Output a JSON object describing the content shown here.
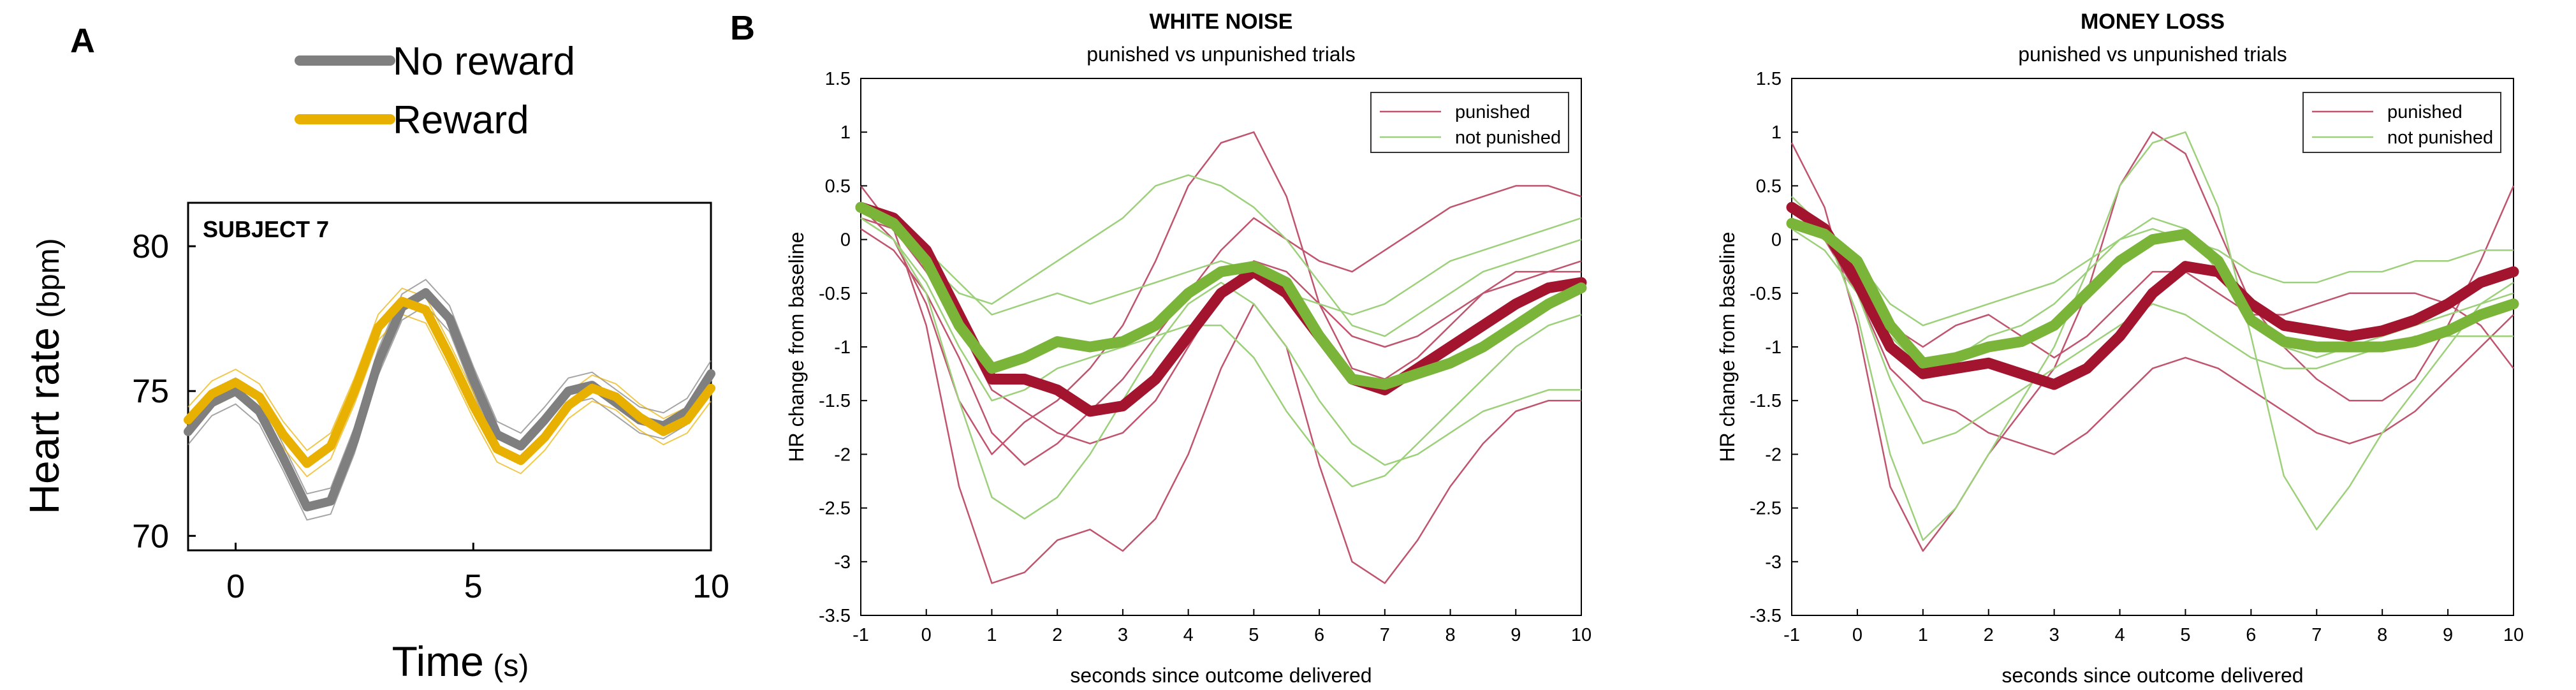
{
  "panel_labels": {
    "a": "A",
    "b": "B"
  },
  "colors": {
    "no_reward": "#7f7f7f",
    "reward": "#e8b000",
    "punished_thin": "#c0546e",
    "not_punished_thin": "#9dd07a",
    "punished_mean": "#a3142e",
    "not_punished_mean": "#7ab53a"
  },
  "chart_data": [
    {
      "id": "panel-a",
      "type": "line",
      "annotation": "SUBJECT 7",
      "xlabel": "Time",
      "xlabel_unit": "(s)",
      "ylabel": "Heart rate",
      "ylabel_unit": "(bpm)",
      "xlim": [
        -1,
        10
      ],
      "ylim": [
        69.5,
        81.5
      ],
      "xticks": [
        0,
        5,
        10
      ],
      "yticks": [
        70,
        75,
        80
      ],
      "grid": false,
      "legend_position": "top",
      "series": [
        {
          "name": "No reward",
          "color_key": "no_reward",
          "x": [
            -1,
            -0.5,
            0,
            0.5,
            1,
            1.5,
            2,
            2.5,
            3,
            3.5,
            4,
            4.5,
            5,
            5.5,
            6,
            6.5,
            7,
            7.5,
            8,
            8.5,
            9,
            9.5,
            10
          ],
          "y": [
            73.6,
            74.6,
            75.0,
            74.3,
            72.7,
            71.0,
            71.2,
            73.3,
            76.0,
            77.9,
            78.4,
            77.5,
            75.4,
            73.5,
            73.1,
            74.0,
            75.0,
            75.2,
            74.6,
            74.0,
            73.8,
            74.3,
            75.6
          ]
        },
        {
          "name": "Reward",
          "color_key": "reward",
          "x": [
            -1,
            -0.5,
            0,
            0.5,
            1,
            1.5,
            2,
            2.5,
            3,
            3.5,
            4,
            4.5,
            5,
            5.5,
            6,
            6.5,
            7,
            7.5,
            8,
            8.5,
            9,
            9.5,
            10
          ],
          "y": [
            74.0,
            74.9,
            75.3,
            74.8,
            73.5,
            72.5,
            73.1,
            75.0,
            77.2,
            78.1,
            77.8,
            76.2,
            74.5,
            73.0,
            72.6,
            73.4,
            74.5,
            75.1,
            74.8,
            74.1,
            73.6,
            74.0,
            75.1
          ]
        }
      ]
    },
    {
      "id": "panel-b1",
      "type": "line",
      "title": "WHITE NOISE",
      "subtitle": "punished vs unpunished trials",
      "xlabel": "seconds since outcome delivered",
      "ylabel": "HR change from baseline",
      "xlim": [
        -1,
        10
      ],
      "ylim": [
        -3.5,
        1.5
      ],
      "xticks": [
        -1,
        0,
        1,
        2,
        3,
        4,
        5,
        6,
        7,
        8,
        9,
        10
      ],
      "yticks": [
        "1.5",
        "1",
        "0.5",
        "0",
        "-0.5",
        "-1",
        "-1.5",
        "-2",
        "-2.5",
        "-3",
        "-3.5"
      ],
      "grid": false,
      "legend_position": "top-right",
      "x": [
        -1,
        -0.5,
        0,
        0.5,
        1,
        1.5,
        2,
        2.5,
        3,
        3.5,
        4,
        4.5,
        5,
        5.5,
        6,
        6.5,
        7,
        7.5,
        8,
        8.5,
        9,
        9.5,
        10
      ],
      "series": [
        {
          "name": "punished",
          "role": "mean",
          "y": [
            0.3,
            0.2,
            -0.1,
            -0.7,
            -1.3,
            -1.3,
            -1.4,
            -1.6,
            -1.55,
            -1.3,
            -0.9,
            -0.5,
            -0.3,
            -0.5,
            -0.9,
            -1.3,
            -1.4,
            -1.2,
            -1.0,
            -0.8,
            -0.6,
            -0.45,
            -0.4
          ]
        },
        {
          "name": "not punished",
          "role": "mean",
          "y": [
            0.3,
            0.15,
            -0.2,
            -0.8,
            -1.2,
            -1.1,
            -0.95,
            -1.0,
            -0.95,
            -0.8,
            -0.5,
            -0.3,
            -0.25,
            -0.4,
            -0.9,
            -1.3,
            -1.35,
            -1.25,
            -1.15,
            -1.0,
            -0.8,
            -0.6,
            -0.45
          ]
        },
        {
          "name": "punished",
          "role": "trial",
          "y": [
            0.5,
            0.1,
            -0.8,
            -2.3,
            -3.2,
            -3.1,
            -2.8,
            -2.7,
            -2.9,
            -2.6,
            -2.0,
            -1.2,
            -0.6,
            -1.0,
            -2.1,
            -3.0,
            -3.2,
            -2.8,
            -2.3,
            -1.9,
            -1.6,
            -1.5,
            -1.5
          ]
        },
        {
          "name": "punished",
          "role": "trial",
          "y": [
            0.3,
            0.0,
            -0.6,
            -1.5,
            -2.0,
            -1.7,
            -1.5,
            -1.2,
            -0.8,
            -0.2,
            0.5,
            0.9,
            1.0,
            0.4,
            -0.6,
            -1.2,
            -1.3,
            -1.1,
            -0.8,
            -0.5,
            -0.3,
            -0.3,
            -0.2
          ]
        },
        {
          "name": "punished",
          "role": "trial",
          "y": [
            0.2,
            0.1,
            -0.3,
            -0.8,
            -1.4,
            -1.6,
            -1.8,
            -1.9,
            -1.8,
            -1.5,
            -1.0,
            -0.5,
            -0.2,
            -0.3,
            -0.6,
            -0.9,
            -1.0,
            -0.9,
            -0.7,
            -0.5,
            -0.4,
            -0.3,
            -0.3
          ]
        },
        {
          "name": "punished",
          "role": "trial",
          "y": [
            0.1,
            -0.1,
            -0.5,
            -1.1,
            -1.8,
            -2.1,
            -1.9,
            -1.6,
            -1.3,
            -0.9,
            -0.5,
            -0.1,
            0.2,
            0.0,
            -0.2,
            -0.3,
            -0.1,
            0.1,
            0.3,
            0.4,
            0.5,
            0.5,
            0.4
          ]
        },
        {
          "name": "not punished",
          "role": "trial",
          "y": [
            0.2,
            0.0,
            -0.5,
            -1.5,
            -2.4,
            -2.6,
            -2.4,
            -2.0,
            -1.5,
            -1.0,
            -0.6,
            -0.4,
            -0.6,
            -1.0,
            -1.5,
            -1.9,
            -2.1,
            -2.0,
            -1.8,
            -1.6,
            -1.5,
            -1.4,
            -1.4
          ]
        },
        {
          "name": "not punished",
          "role": "trial",
          "y": [
            0.3,
            0.1,
            -0.2,
            -0.5,
            -0.6,
            -0.4,
            -0.2,
            0.0,
            0.2,
            0.5,
            0.6,
            0.5,
            0.3,
            0.0,
            -0.4,
            -0.8,
            -0.9,
            -0.7,
            -0.5,
            -0.3,
            -0.2,
            -0.1,
            0.0
          ]
        },
        {
          "name": "not punished",
          "role": "trial",
          "y": [
            0.2,
            0.0,
            -0.4,
            -1.0,
            -1.5,
            -1.4,
            -1.2,
            -1.1,
            -1.0,
            -0.9,
            -0.8,
            -0.8,
            -1.1,
            -1.6,
            -2.0,
            -2.3,
            -2.2,
            -1.9,
            -1.6,
            -1.3,
            -1.0,
            -0.8,
            -0.7
          ]
        },
        {
          "name": "not punished",
          "role": "trial",
          "y": [
            0.3,
            0.2,
            -0.1,
            -0.4,
            -0.7,
            -0.6,
            -0.5,
            -0.6,
            -0.5,
            -0.4,
            -0.3,
            -0.2,
            -0.3,
            -0.5,
            -0.6,
            -0.7,
            -0.6,
            -0.4,
            -0.2,
            -0.1,
            0.0,
            0.1,
            0.2
          ]
        }
      ]
    },
    {
      "id": "panel-b2",
      "type": "line",
      "title": "MONEY LOSS",
      "subtitle": "punished vs unpunished trials",
      "xlabel": "seconds since outcome delivered",
      "ylabel": "HR change from baseline",
      "xlim": [
        -1,
        10
      ],
      "ylim": [
        -3.5,
        1.5
      ],
      "xticks": [
        -1,
        0,
        1,
        2,
        3,
        4,
        5,
        6,
        7,
        8,
        9,
        10
      ],
      "yticks": [
        "1.5",
        "1",
        "0.5",
        "0",
        "-0.5",
        "-1",
        "-1.5",
        "-2",
        "-2.5",
        "-3",
        "-3.5"
      ],
      "grid": false,
      "legend_position": "top-right",
      "x": [
        -1,
        -0.5,
        0,
        0.5,
        1,
        1.5,
        2,
        2.5,
        3,
        3.5,
        4,
        4.5,
        5,
        5.5,
        6,
        6.5,
        7,
        7.5,
        8,
        8.5,
        9,
        9.5,
        10
      ],
      "series": [
        {
          "name": "punished",
          "role": "mean",
          "y": [
            0.3,
            0.1,
            -0.4,
            -1.0,
            -1.25,
            -1.2,
            -1.15,
            -1.25,
            -1.35,
            -1.2,
            -0.9,
            -0.5,
            -0.25,
            -0.3,
            -0.6,
            -0.8,
            -0.85,
            -0.9,
            -0.85,
            -0.75,
            -0.6,
            -0.4,
            -0.3
          ]
        },
        {
          "name": "not punished",
          "role": "mean",
          "y": [
            0.15,
            0.05,
            -0.2,
            -0.8,
            -1.15,
            -1.1,
            -1.0,
            -0.95,
            -0.8,
            -0.5,
            -0.2,
            0.0,
            0.05,
            -0.2,
            -0.75,
            -0.95,
            -1.0,
            -1.0,
            -1.0,
            -0.95,
            -0.85,
            -0.7,
            -0.6
          ]
        },
        {
          "name": "punished",
          "role": "trial",
          "y": [
            0.9,
            0.3,
            -0.8,
            -2.3,
            -2.9,
            -2.5,
            -2.0,
            -1.6,
            -1.2,
            -0.5,
            0.5,
            1.0,
            0.8,
            0.1,
            -0.6,
            -1.0,
            -1.3,
            -1.5,
            -1.5,
            -1.3,
            -0.8,
            -0.2,
            0.5
          ]
        },
        {
          "name": "punished",
          "role": "trial",
          "y": [
            0.2,
            0.0,
            -0.5,
            -1.2,
            -1.5,
            -1.6,
            -1.8,
            -1.9,
            -2.0,
            -1.8,
            -1.5,
            -1.2,
            -1.1,
            -1.2,
            -1.4,
            -1.6,
            -1.8,
            -1.9,
            -1.8,
            -1.6,
            -1.3,
            -1.0,
            -0.7
          ]
        },
        {
          "name": "punished",
          "role": "trial",
          "y": [
            0.3,
            0.1,
            -0.3,
            -0.8,
            -1.0,
            -0.8,
            -0.7,
            -0.9,
            -1.1,
            -0.9,
            -0.6,
            -0.3,
            -0.3,
            -0.5,
            -0.7,
            -0.7,
            -0.6,
            -0.5,
            -0.5,
            -0.5,
            -0.6,
            -0.8,
            -1.2
          ]
        },
        {
          "name": "not punished",
          "role": "trial",
          "y": [
            0.4,
            0.1,
            -0.7,
            -2.0,
            -2.8,
            -2.5,
            -2.0,
            -1.5,
            -1.0,
            -0.3,
            0.5,
            0.9,
            1.0,
            0.3,
            -0.9,
            -2.2,
            -2.7,
            -2.3,
            -1.8,
            -1.4,
            -1.0,
            -0.6,
            -0.4
          ]
        },
        {
          "name": "not punished",
          "role": "trial",
          "y": [
            0.2,
            0.0,
            -0.4,
            -0.9,
            -1.2,
            -1.1,
            -0.9,
            -0.8,
            -0.6,
            -0.3,
            0.0,
            0.2,
            0.1,
            -0.3,
            -0.8,
            -1.0,
            -1.1,
            -1.0,
            -0.9,
            -0.8,
            -0.7,
            -0.6,
            -0.5
          ]
        },
        {
          "name": "not punished",
          "role": "trial",
          "y": [
            0.3,
            0.1,
            -0.2,
            -0.6,
            -0.8,
            -0.7,
            -0.6,
            -0.5,
            -0.4,
            -0.2,
            0.0,
            0.1,
            0.0,
            -0.1,
            -0.3,
            -0.4,
            -0.4,
            -0.3,
            -0.3,
            -0.2,
            -0.2,
            -0.1,
            -0.1
          ]
        },
        {
          "name": "not punished",
          "role": "trial",
          "y": [
            0.1,
            -0.1,
            -0.5,
            -1.3,
            -1.9,
            -1.8,
            -1.6,
            -1.4,
            -1.2,
            -1.0,
            -0.8,
            -0.6,
            -0.7,
            -0.9,
            -1.1,
            -1.2,
            -1.2,
            -1.1,
            -1.0,
            -0.9,
            -0.9,
            -0.9,
            -0.9
          ]
        }
      ]
    }
  ]
}
